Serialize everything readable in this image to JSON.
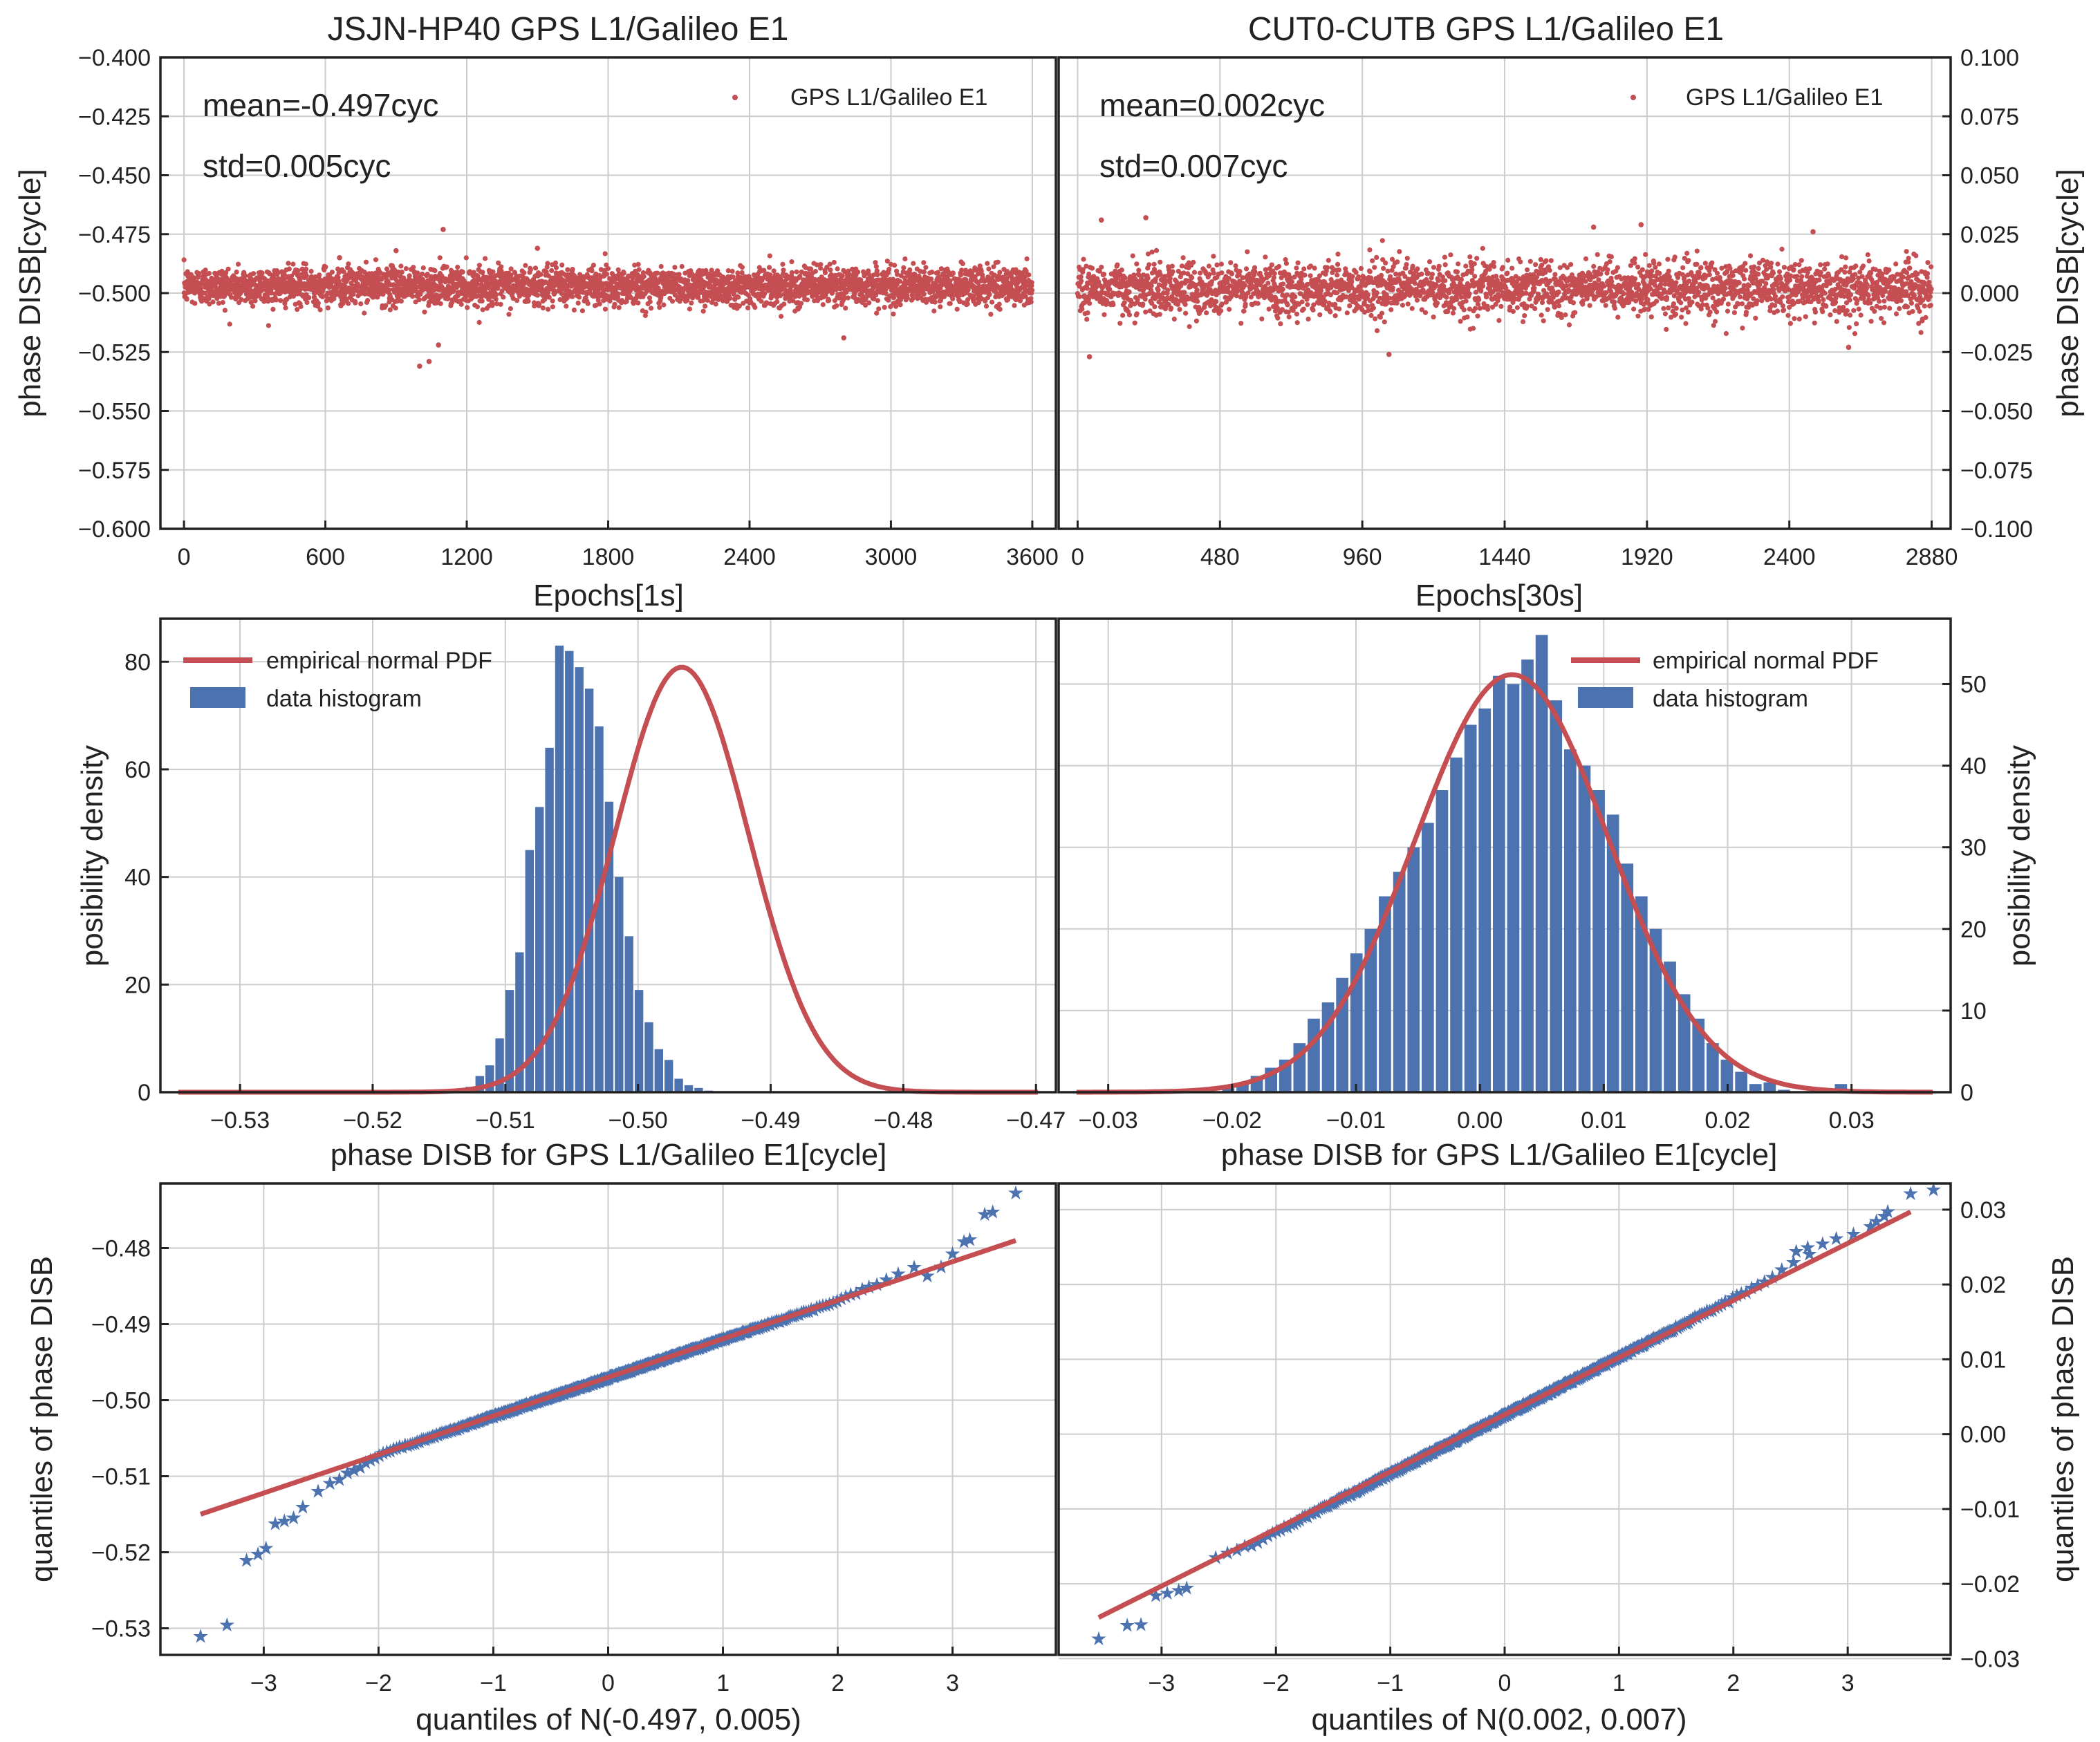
{
  "colors": {
    "scatter": "#c44e52",
    "bar": "#4c72b0",
    "pdf": "#c44e52",
    "qq": "#4c72b0",
    "grid": "#cccccc",
    "frame": "#222222"
  },
  "chart_data": [
    {
      "type": "scatter",
      "panel": "top-left",
      "title": "JSJN-HP40 GPS L1/Galileo E1",
      "xlabel": "Epochs[1s]",
      "ylabel": "phase DISB[cycle]",
      "xlim": [
        -100,
        3700
      ],
      "ylim": [
        -0.6,
        -0.4
      ],
      "xticks": [
        0,
        600,
        1200,
        1800,
        2400,
        3000,
        3600
      ],
      "yticks": [
        -0.6,
        -0.575,
        -0.55,
        -0.525,
        -0.5,
        -0.475,
        -0.45,
        -0.425,
        -0.4
      ],
      "ytick_labels": [
        "−0.600",
        "−0.575",
        "−0.550",
        "−0.525",
        "−0.500",
        "−0.475",
        "−0.450",
        "−0.425",
        "−0.400"
      ],
      "legend": "GPS L1/Galileo E1",
      "annotations": [
        "mean=-0.497cyc",
        "std=0.005cyc"
      ],
      "series": {
        "n": 3600,
        "x_start": 0,
        "x_step": 1,
        "mean": -0.497,
        "std": 0.005
      },
      "outliers": [
        {
          "x": 1000,
          "y": -0.531
        },
        {
          "x": 1040,
          "y": -0.529
        },
        {
          "x": 1080,
          "y": -0.522
        },
        {
          "x": 1100,
          "y": -0.473
        },
        {
          "x": 660,
          "y": -0.485
        },
        {
          "x": 900,
          "y": -0.482
        },
        {
          "x": 2800,
          "y": -0.519
        },
        {
          "x": 1500,
          "y": -0.481
        }
      ]
    },
    {
      "type": "scatter",
      "panel": "top-right",
      "title": "CUT0-CUTB GPS L1/Galileo E1",
      "xlabel": "Epochs[30s]",
      "ylabel": "phase DISB[cycle]",
      "xlim": [
        -64,
        2944
      ],
      "ylim": [
        -0.1,
        0.1
      ],
      "xticks": [
        0,
        480,
        960,
        1440,
        1920,
        2400,
        2880
      ],
      "yticks": [
        -0.1,
        -0.075,
        -0.05,
        -0.025,
        0.0,
        0.025,
        0.05,
        0.075,
        0.1
      ],
      "ytick_labels": [
        "−0.100",
        "−0.075",
        "−0.050",
        "−0.025",
        "0.000",
        "0.025",
        "0.050",
        "0.075",
        "0.100"
      ],
      "legend": "GPS L1/Galileo E1",
      "annotations": [
        "mean=0.002cyc",
        "std=0.007cyc"
      ],
      "series": {
        "n": 2880,
        "x_start": 0,
        "x_step": 1,
        "mean": 0.002,
        "std": 0.007
      },
      "outliers": [
        {
          "x": 230,
          "y": 0.032
        },
        {
          "x": 80,
          "y": 0.031
        },
        {
          "x": 1900,
          "y": 0.029
        },
        {
          "x": 1740,
          "y": 0.028
        },
        {
          "x": 2480,
          "y": 0.026
        },
        {
          "x": 40,
          "y": -0.027
        },
        {
          "x": 1050,
          "y": -0.026
        },
        {
          "x": 2600,
          "y": -0.023
        }
      ]
    },
    {
      "type": "bar",
      "panel": "middle-left",
      "xlabel": "phase DISB for GPS L1/Galileo E1[cycle]",
      "ylabel": "posibility density",
      "xlim": [
        -0.536,
        -0.4685
      ],
      "ylim": [
        0,
        88
      ],
      "xticks": [
        -0.53,
        -0.52,
        -0.51,
        -0.5,
        -0.49,
        -0.48,
        -0.47
      ],
      "xtick_labels": [
        "−0.53",
        "−0.52",
        "−0.51",
        "−0.50",
        "−0.49",
        "−0.48",
        "−0.47"
      ],
      "yticks": [
        0,
        20,
        40,
        60,
        80
      ],
      "ytick_labels": [
        "0",
        "20",
        "40",
        "60",
        "80"
      ],
      "bin_width": 0.00075,
      "bin_start": -0.5145,
      "values": [
        0.2,
        0.5,
        1.0,
        3.0,
        5.0,
        10.0,
        19.0,
        26.0,
        45.0,
        53.0,
        64.0,
        83.0,
        82.0,
        79.0,
        75.0,
        68.0,
        54.0,
        40.0,
        29.0,
        19.0,
        13.0,
        8.0,
        6.0,
        2.5,
        1.3,
        0.8,
        0.3
      ],
      "pdf": {
        "mean": -0.4967,
        "std": 0.00505,
        "label": "empirical normal PDF"
      },
      "legend": [
        "empirical normal PDF",
        "data histogram"
      ]
    },
    {
      "type": "bar",
      "panel": "middle-right",
      "xlabel": "phase DISB for GPS L1/Galileo E1[cycle]",
      "ylabel": "posibility density",
      "xlim": [
        -0.034,
        0.038
      ],
      "ylim": [
        0,
        58
      ],
      "xticks": [
        -0.03,
        -0.02,
        -0.01,
        0.0,
        0.01,
        0.02,
        0.03
      ],
      "xtick_labels": [
        "−0.03",
        "−0.02",
        "−0.01",
        "0.00",
        "0.01",
        "0.02",
        "0.03"
      ],
      "yticks": [
        0,
        10,
        20,
        30,
        40,
        50
      ],
      "ytick_labels": [
        "0",
        "10",
        "20",
        "30",
        "40",
        "50"
      ],
      "bin_width": 0.00115,
      "bin_start": -0.0208,
      "values": [
        0.5,
        1.0,
        2.0,
        3.0,
        4.0,
        6.0,
        9.0,
        11.0,
        14.0,
        17.0,
        20.0,
        24.0,
        27.0,
        30.0,
        33.0,
        37.0,
        41.0,
        45.0,
        47.0,
        51.0,
        50.0,
        53.0,
        56.0,
        48.0,
        42.0,
        40.0,
        37.0,
        34.0,
        28.0,
        24.0,
        20.0,
        16.0,
        12.0,
        9.0,
        6.0,
        4.0,
        2.5,
        1.0,
        1.2,
        0.3,
        0.0,
        0.0,
        0.4,
        1.0
      ],
      "pdf": {
        "mean": 0.0026,
        "std": 0.0078,
        "label": "empirical normal PDF"
      },
      "legend": [
        "empirical normal PDF",
        "data histogram"
      ]
    },
    {
      "type": "scatter",
      "panel": "bottom-left",
      "subtype": "qq",
      "xlabel": "quantiles of N(-0.497, 0.005)",
      "ylabel": "quantiles of phase DISB",
      "xlim": [
        -3.9,
        3.9
      ],
      "ylim": [
        -0.5335,
        -0.4715
      ],
      "xticks": [
        -3,
        -2,
        -1,
        0,
        1,
        2,
        3
      ],
      "xtick_labels": [
        "−3",
        "−2",
        "−1",
        "0",
        "1",
        "2",
        "3"
      ],
      "yticks": [
        -0.53,
        -0.52,
        -0.51,
        -0.5,
        -0.49,
        -0.48
      ],
      "ytick_labels": [
        "−0.53",
        "−0.52",
        "−0.51",
        "−0.50",
        "−0.49",
        "−0.48"
      ],
      "fit_line": {
        "x": [
          -3.55,
          3.55
        ],
        "y": [
          -0.515,
          -0.479
        ]
      },
      "qq": {
        "mean": -0.497,
        "slope": 0.00505
      },
      "tail_points": [
        {
          "x": -3.55,
          "y": -0.531
        },
        {
          "x": -3.32,
          "y": -0.5295
        },
        {
          "x": -3.15,
          "y": -0.521
        },
        {
          "x": -3.05,
          "y": -0.5202
        },
        {
          "x": -2.98,
          "y": -0.5194
        },
        {
          "x": -2.9,
          "y": -0.5162
        },
        {
          "x": -2.82,
          "y": -0.5158
        },
        {
          "x": -2.74,
          "y": -0.5154
        },
        {
          "x": -2.66,
          "y": -0.514
        },
        {
          "x": 2.78,
          "y": -0.4836
        },
        {
          "x": 2.9,
          "y": -0.4824
        },
        {
          "x": 3.0,
          "y": -0.4807
        },
        {
          "x": 3.1,
          "y": -0.4791
        },
        {
          "x": 3.15,
          "y": -0.4788
        },
        {
          "x": 3.28,
          "y": -0.4755
        },
        {
          "x": 3.35,
          "y": -0.4752
        },
        {
          "x": 3.55,
          "y": -0.4727
        }
      ],
      "qq_left_deviation": {
        "x_from": -2.65,
        "x_to": -1.95,
        "amount": 0.0025
      },
      "qq_right_deviation": {
        "x_from": 2.0,
        "x_to": 2.75,
        "amount": 0.0012
      }
    },
    {
      "type": "scatter",
      "panel": "bottom-right",
      "subtype": "qq",
      "xlabel": "quantiles of N(0.002, 0.007)",
      "ylabel": "quantiles of phase DISB",
      "xlim": [
        -3.9,
        3.9
      ],
      "ylim": [
        -0.0295,
        0.0335
      ],
      "xticks": [
        -3,
        -2,
        -1,
        0,
        1,
        2,
        3
      ],
      "xtick_labels": [
        "−3",
        "−2",
        "−1",
        "0",
        "1",
        "2",
        "3"
      ],
      "yticks": [
        -0.03,
        -0.02,
        -0.01,
        0.0,
        0.01,
        0.02,
        0.03
      ],
      "ytick_labels": [
        "−0.03",
        "−0.02",
        "−0.01",
        "0.00",
        "0.01",
        "0.02",
        "0.03"
      ],
      "fit_line": {
        "x": [
          -3.55,
          3.55
        ],
        "y": [
          -0.0245,
          0.0297
        ]
      },
      "qq": {
        "mean": 0.0026,
        "slope": 0.0078
      },
      "tail_points": [
        {
          "x": -3.55,
          "y": -0.0273
        },
        {
          "x": -3.3,
          "y": -0.0255
        },
        {
          "x": -3.18,
          "y": -0.0254
        },
        {
          "x": -3.05,
          "y": -0.0215
        },
        {
          "x": -2.95,
          "y": -0.0212
        },
        {
          "x": -2.85,
          "y": -0.0208
        },
        {
          "x": -2.78,
          "y": -0.0205
        },
        {
          "x": 2.55,
          "y": 0.0245
        },
        {
          "x": 2.65,
          "y": 0.025
        },
        {
          "x": 2.78,
          "y": 0.0255
        },
        {
          "x": 2.9,
          "y": 0.0262
        },
        {
          "x": 3.05,
          "y": 0.0268
        },
        {
          "x": 3.2,
          "y": 0.0278
        },
        {
          "x": 3.25,
          "y": 0.0285
        },
        {
          "x": 3.32,
          "y": 0.0292
        },
        {
          "x": 3.35,
          "y": 0.0298
        },
        {
          "x": 3.55,
          "y": 0.0322
        },
        {
          "x": 3.75,
          "y": 0.0327
        }
      ],
      "qq_left_deviation": {
        "x_from": -2.75,
        "x_to": -2.2,
        "amount": -0.0008
      },
      "qq_right_deviation": {
        "x_from": 2.2,
        "x_to": 2.55,
        "amount": 0.0008
      }
    }
  ]
}
